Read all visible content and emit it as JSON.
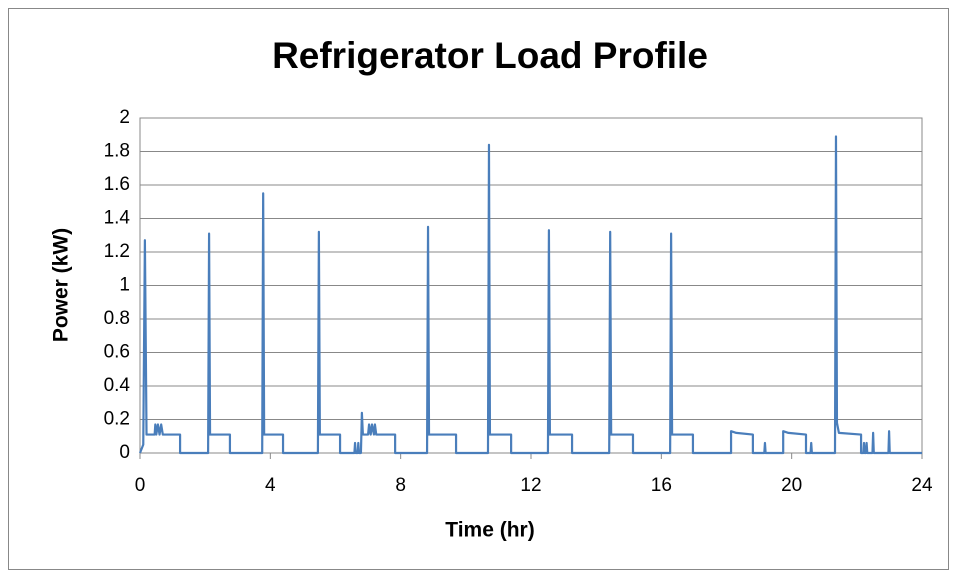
{
  "chart_data": {
    "type": "line",
    "title": "Refrigerator Load Profile",
    "x_label": "Time (hr)",
    "y_label": "Power (kW)",
    "xlim": [
      0,
      24
    ],
    "xticks": [
      0,
      4,
      8,
      12,
      16,
      20,
      24
    ],
    "ylim": [
      0,
      2
    ],
    "yticks": [
      0,
      0.2,
      0.4,
      0.6,
      0.8,
      1,
      1.2,
      1.4,
      1.6,
      1.8,
      2
    ],
    "grid": true,
    "x": [
      0,
      0.1,
      0.15,
      0.2,
      0.45,
      0.47,
      0.5,
      0.55,
      0.6,
      0.65,
      0.7,
      1.23,
      1.23,
      2.09,
      2.12,
      2.15,
      2.76,
      2.76,
      3.75,
      3.78,
      3.81,
      4.39,
      4.39,
      5.46,
      5.49,
      5.52,
      6.14,
      6.14,
      6.58,
      6.6,
      6.62,
      6.68,
      6.7,
      6.72,
      6.78,
      6.81,
      6.84,
      7.0,
      7.03,
      7.08,
      7.12,
      7.18,
      7.21,
      7.25,
      7.83,
      7.83,
      8.81,
      8.84,
      8.87,
      9.7,
      9.7,
      10.68,
      10.71,
      10.74,
      11.39,
      11.39,
      12.52,
      12.55,
      12.58,
      13.26,
      13.26,
      14.4,
      14.43,
      14.46,
      15.13,
      15.13,
      16.27,
      16.3,
      16.33,
      16.97,
      16.97,
      18.14,
      18.14,
      18.3,
      18.81,
      18.81,
      19.16,
      19.18,
      19.2,
      19.74,
      19.74,
      19.9,
      20.44,
      20.44,
      20.58,
      20.6,
      20.62,
      21.33,
      21.36,
      21.39,
      21.45,
      22.13,
      22.13,
      22.2,
      22.22,
      22.24,
      22.28,
      22.3,
      22.32,
      22.48,
      22.5,
      22.52,
      22.97,
      22.99,
      23.01,
      24
    ],
    "series": [
      {
        "color": "#4a7ebb",
        "values": [
          0,
          0.05,
          1.27,
          0.11,
          0.11,
          0.17,
          0.11,
          0.17,
          0.11,
          0.17,
          0.11,
          0.11,
          0,
          0,
          1.31,
          0.11,
          0.11,
          0,
          0,
          1.55,
          0.11,
          0.11,
          0,
          0,
          1.32,
          0.11,
          0.11,
          0,
          0,
          0.06,
          0,
          0,
          0.06,
          0,
          0,
          0.24,
          0.11,
          0.11,
          0.17,
          0.11,
          0.17,
          0.11,
          0.17,
          0.11,
          0.11,
          0,
          0,
          1.35,
          0.11,
          0.11,
          0,
          0,
          1.84,
          0.11,
          0.11,
          0,
          0,
          1.33,
          0.11,
          0.11,
          0,
          0,
          1.32,
          0.11,
          0.11,
          0,
          0,
          1.31,
          0.11,
          0.11,
          0,
          0,
          0.13,
          0.12,
          0.11,
          0,
          0,
          0.06,
          0,
          0,
          0.13,
          0.12,
          0.11,
          0,
          0,
          0.06,
          0,
          0,
          1.89,
          0.18,
          0.12,
          0.11,
          0,
          0,
          0.06,
          0,
          0,
          0.06,
          0,
          0,
          0.12,
          0,
          0,
          0.13,
          0,
          0
        ]
      }
    ]
  }
}
